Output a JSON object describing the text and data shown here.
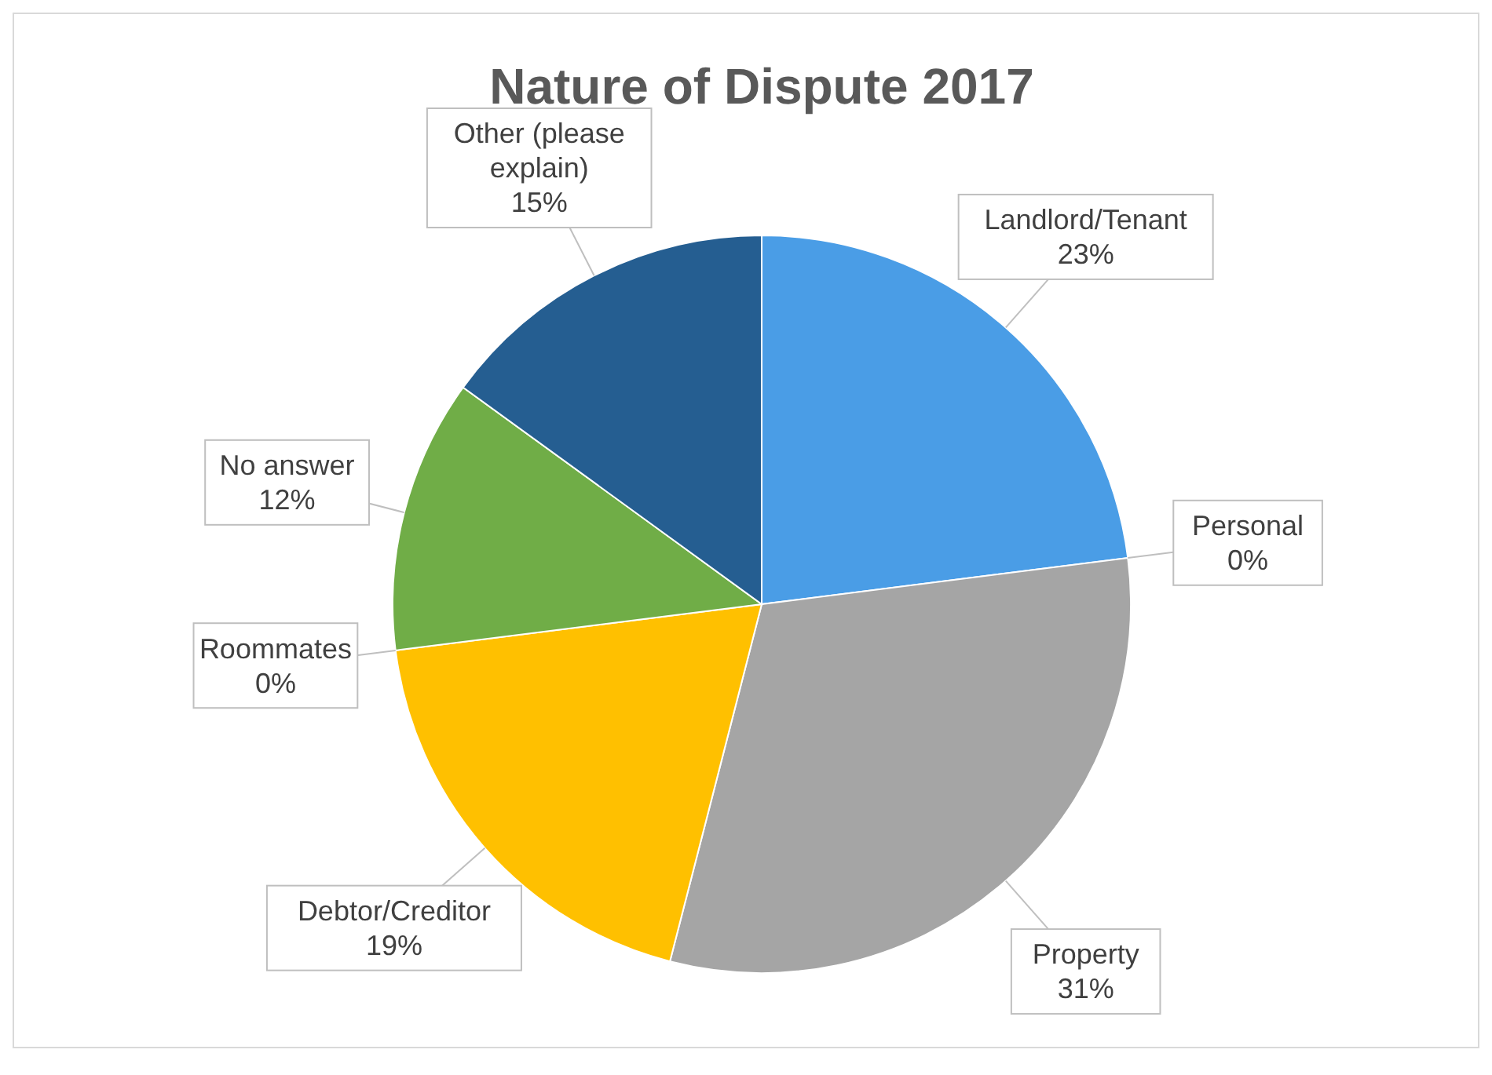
{
  "chart_data": {
    "type": "pie",
    "title": "Nature of Dispute 2017",
    "categories": [
      "Landlord/Tenant",
      "Personal",
      "Property",
      "Debtor/Creditor",
      "Roommates",
      "No answer",
      "Other (please explain)"
    ],
    "values": [
      23,
      0,
      31,
      19,
      0,
      12,
      15
    ],
    "colors": [
      "#4a9de6",
      "#ed7d31",
      "#a5a5a5",
      "#ffc000",
      "#5b9bd5",
      "#70ad47",
      "#255e91"
    ],
    "value_labels": [
      "23%",
      "0%",
      "31%",
      "19%",
      "0%",
      "12%",
      "15%"
    ]
  }
}
